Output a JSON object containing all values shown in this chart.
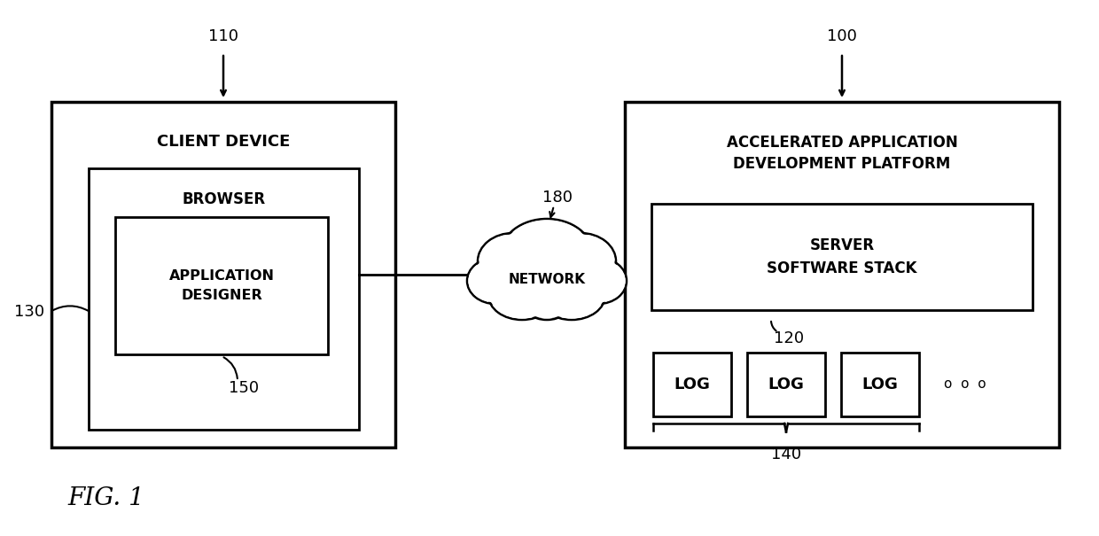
{
  "bg_color": "#ffffff",
  "fig_label": "FIG. 1",
  "label_110": "110",
  "label_100": "100",
  "label_130": "130",
  "label_150": "150",
  "label_180": "180",
  "label_120": "120",
  "label_140": "140",
  "text_client_device": "CLIENT DEVICE",
  "text_browser": "BROWSER",
  "text_app_designer": "APPLICATION\nDESIGNER",
  "text_network": "NETWORK",
  "text_aadp": "ACCELERATED APPLICATION\nDEVELOPMENT PLATFORM",
  "text_server_stack": "SERVER\nSOFTWARE STACK",
  "text_log": "LOG",
  "dots": "o  o  o",
  "line_color": "#000000",
  "text_color": "#000000",
  "figsize": [
    12.4,
    6.05
  ],
  "dpi": 100
}
